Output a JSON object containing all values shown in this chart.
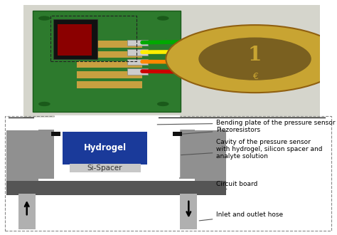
{
  "bg_color": "#ffffff",
  "dashed_box_color": "#888888",
  "gray_body": "#909090",
  "dark_gray": "#555555",
  "light_gray": "#b0b0b0",
  "hydrogel_color": "#1a3a9a",
  "hydrogel_text": "Hydrogel",
  "hydrogel_text_color": "#ffffff",
  "spacer_color": "#c8c8c8",
  "spacer_text": "Si-Spacer",
  "spacer_text_color": "#333333",
  "black_color": "#111111",
  "photo_bg": "#d8d8d0",
  "pcb_green": "#2d7a2d",
  "pcb_dark_green": "#1a5a1a",
  "gold_trace": "#c8a040",
  "wire_colors": [
    "#cc0000",
    "#ff8800",
    "#ffee00",
    "#00aa00"
  ],
  "coin_outer": "#c8a432",
  "coin_inner": "#7a6020",
  "labels": [
    "Bending plate of the pressure sensor",
    "Piezoresistors",
    "Cavity of the pressure sensor\nwith hydrogel, silicon spacer and\nanalyte solution",
    "Circuit board",
    "Inlet and outlet hose"
  ],
  "font_size": 6.5
}
